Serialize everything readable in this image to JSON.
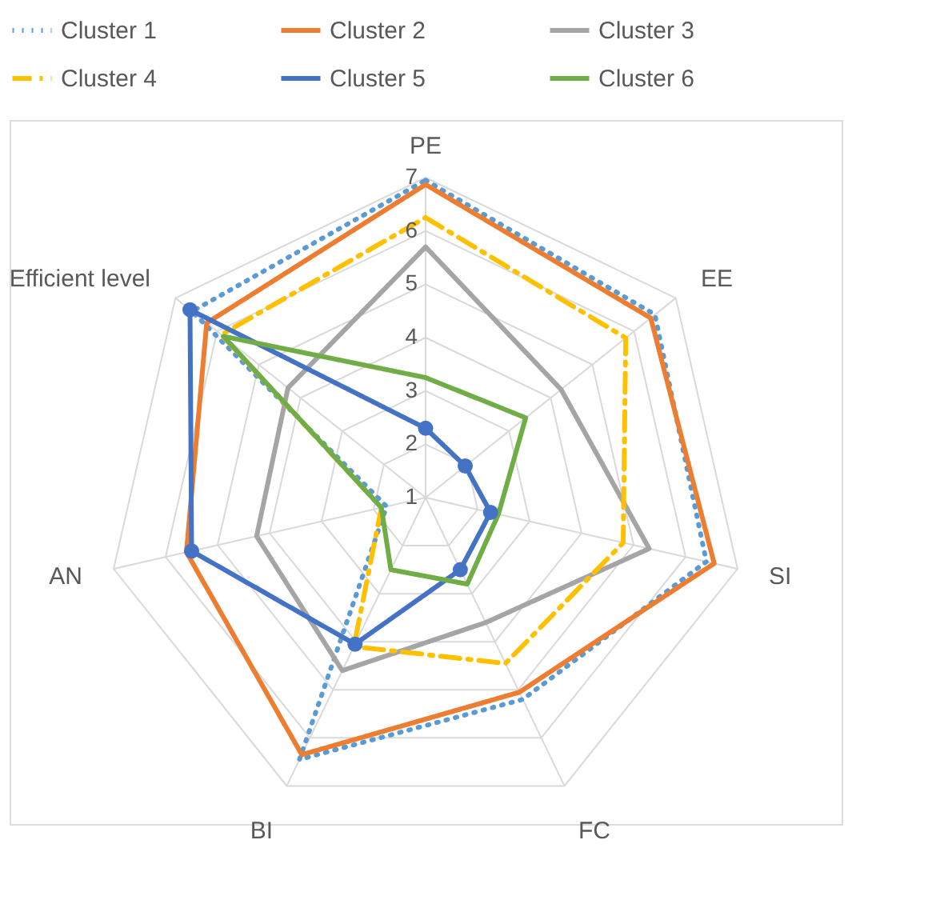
{
  "chart_data": {
    "type": "radar",
    "categories": [
      "PE",
      "EE",
      "SI",
      "FC",
      "BI",
      "AN",
      "Efficient level"
    ],
    "ylim": [
      1,
      7
    ],
    "yticks": [
      1,
      2,
      3,
      4,
      5,
      6,
      7
    ],
    "grid": true,
    "legend": "top",
    "series": [
      {
        "name": "Cluster 1",
        "color": "#5b9bd5",
        "line_style": "dotted",
        "values": [
          6.95,
          6.5,
          6.4,
          5.2,
          6.45,
          1.75,
          6.6
        ]
      },
      {
        "name": "Cluster 2",
        "color": "#ed7d31",
        "line_style": "solid",
        "values": [
          6.87,
          6.4,
          6.55,
          5.05,
          6.35,
          5.6,
          6.25
        ]
      },
      {
        "name": "Cluster 3",
        "color": "#a5a5a5",
        "line_style": "solid",
        "values": [
          5.7,
          4.25,
          5.3,
          3.6,
          4.6,
          4.25,
          4.3
        ]
      },
      {
        "name": "Cluster 4",
        "color": "#ffc000",
        "line_style": "dashed",
        "values": [
          6.25,
          5.8,
          4.8,
          4.45,
          4.1,
          1.85,
          5.9
        ]
      },
      {
        "name": "Cluster 5",
        "color": "#4472c4",
        "line_style": "solid",
        "marker": "circle",
        "values": [
          2.3,
          1.95,
          2.25,
          2.5,
          4.05,
          5.5,
          6.65
        ]
      },
      {
        "name": "Cluster 6",
        "color": "#70ad47",
        "line_style": "solid",
        "values": [
          3.25,
          3.4,
          2.4,
          2.8,
          2.5,
          1.85,
          5.85
        ]
      }
    ]
  }
}
